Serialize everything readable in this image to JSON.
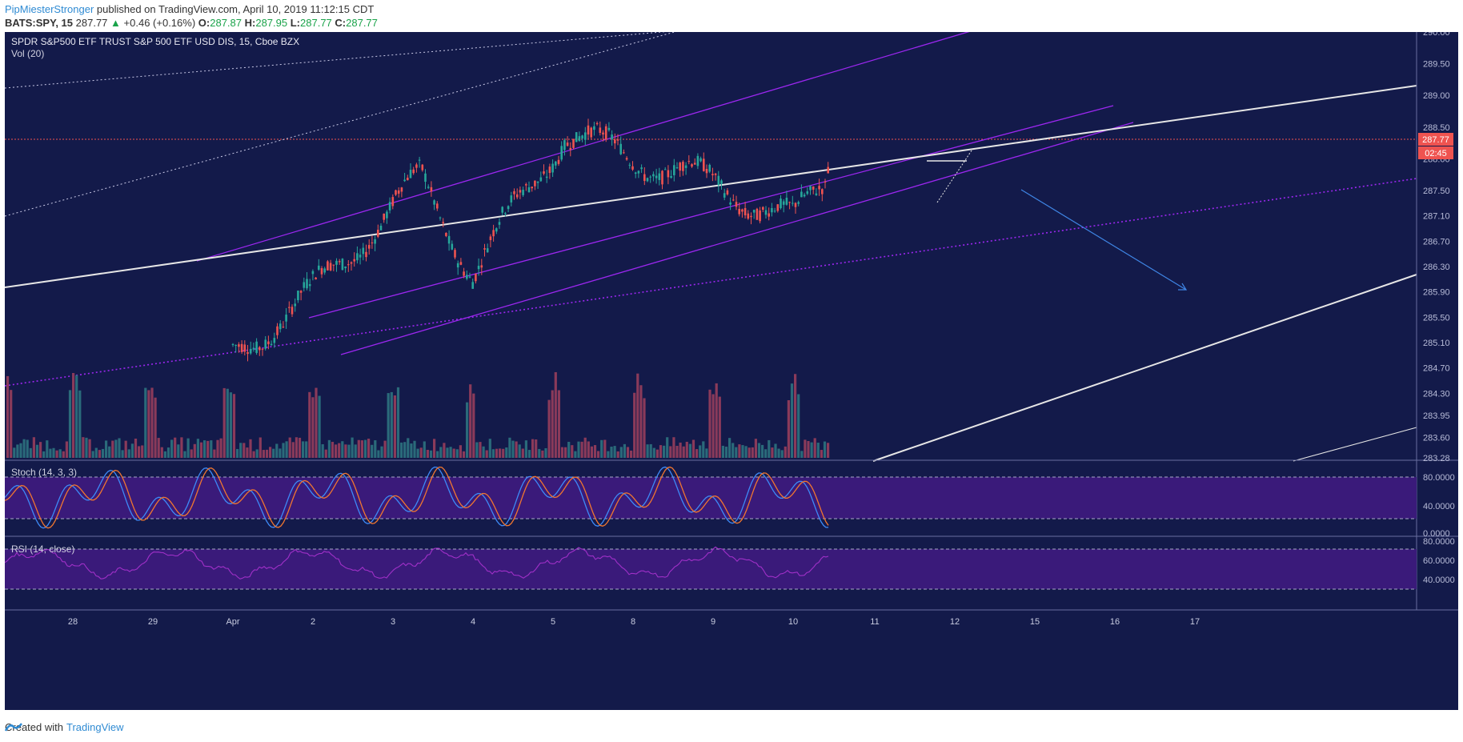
{
  "header": {
    "author": "PipMiesterStronger",
    "published": "published on TradingView.com, April 10, 2019 11:12:15 CDT",
    "symbol": "BATS:SPY, 15",
    "last": "287.77",
    "change_arrow": "▲",
    "change": "+0.46 (+0.16%)",
    "o_label": "O:",
    "o_value": "287.87",
    "h_label": "H:",
    "h_value": "287.95",
    "l_label": "L:",
    "l_value": "287.77",
    "c_label": "C:",
    "c_value": "287.77"
  },
  "legend": {
    "title": "SPDR S&P500 ETF TRUST S&P 500 ETF USD DIS, 15, Cboe BZX",
    "vol": "Vol (20)",
    "stoch": "Stoch (14, 3, 3)",
    "rsi": "RSI (14, close)"
  },
  "price_labels": {
    "last": "287.77",
    "countdown": "02:45"
  },
  "footer": {
    "created_with": "Created with",
    "brand": "TradingView"
  },
  "colors": {
    "background": "#131a4a",
    "up": "#26a69a",
    "down": "#ef5350",
    "channel": "#9c27f0",
    "trendline": "#e6e6e6",
    "arrow": "#3f86e6",
    "stoch_k": "#3d8af7",
    "stoch_d": "#f0762f",
    "rsi": "#a030c8",
    "band": "#3a1a7a"
  },
  "chart_data": {
    "type": "candlestick",
    "title": "SPDR S&P500 ETF TRUST S&P 500 ETF USD DIS, 15, Cboe BZX",
    "price_ylim": [
      283.28,
      290.0
    ],
    "price_ticks": [
      290.0,
      289.5,
      289.0,
      288.5,
      288.0,
      287.5,
      287.1,
      286.7,
      286.3,
      285.9,
      285.5,
      285.1,
      284.7,
      284.3,
      283.95,
      283.6,
      283.28
    ],
    "price_tick_labels": [
      "290.00",
      "289.50",
      "289.00",
      "288.50",
      "288.00",
      "287.50",
      "287.10",
      "286.70",
      "286.30",
      "285.90",
      "285.50",
      "285.10",
      "284.70",
      "284.30",
      "283.95",
      "283.60",
      "283.28"
    ],
    "x_ticks": [
      "28",
      "29",
      "Apr",
      "2",
      "3",
      "4",
      "5",
      "8",
      "9",
      "10",
      "11",
      "12",
      "15",
      "16",
      "17"
    ],
    "stoch_ticks": [
      "80.0000",
      "40.0000",
      "0.0000"
    ],
    "rsi_ticks": [
      "80.0000",
      "60.0000",
      "40.0000"
    ],
    "anchors": [
      {
        "day": "2-start",
        "price": 284.9
      },
      {
        "day": "2",
        "price": 285.9
      },
      {
        "day": "3",
        "price": 287.7
      },
      {
        "day": "4",
        "price": 286.2
      },
      {
        "day": "5",
        "price": 288.4
      },
      {
        "day": "8",
        "price": 288.0
      },
      {
        "day": "9",
        "price": 287.6
      },
      {
        "day": "10",
        "price": 287.0
      },
      {
        "day": "10-end",
        "price": 287.77
      }
    ],
    "last_price": 287.77,
    "last_open": 287.87,
    "last_high": 287.95,
    "last_low": 287.77,
    "last_close": 287.77
  }
}
